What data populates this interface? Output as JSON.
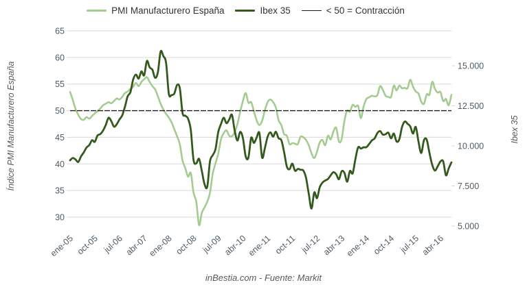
{
  "footer": "inBestia.com - Fuente: Markit",
  "colors": {
    "background": "#ffffff",
    "grid": "#d9d9d9",
    "tick_text": "#4e5b66",
    "axis_title_text": "#595959",
    "legend_text": "#333333"
  },
  "chart_data": {
    "type": "line",
    "title": "",
    "x_frequency": "monthly",
    "x_start": "ene-05",
    "x_end": "ago-16",
    "x_tick_labels": [
      "ene-05",
      "oct-05",
      "jul-06",
      "abr-07",
      "ene-08",
      "oct-08",
      "jul-09",
      "abr-10",
      "ene-11",
      "oct-11",
      "jul-12",
      "abr-13",
      "ene-14",
      "oct-14",
      "jul-15",
      "abr-16"
    ],
    "x_tick_month_indices": [
      0,
      9,
      18,
      27,
      36,
      45,
      54,
      63,
      72,
      81,
      90,
      99,
      108,
      117,
      126,
      135
    ],
    "grid": "horizontal",
    "legend_position": "top",
    "left_axis": {
      "title": "Índice PMI Manufacturero España",
      "ticks": [
        30,
        35,
        40,
        45,
        50,
        55,
        60,
        65
      ],
      "range": [
        30,
        65
      ]
    },
    "right_axis": {
      "title": "Ibex 35",
      "tick_labels": [
        "5.000",
        "7.500",
        "10.000",
        "12.500",
        "15.000"
      ],
      "tick_values": [
        5000,
        7500,
        10000,
        12500,
        15000
      ],
      "range": [
        5000,
        16000
      ]
    },
    "threshold": {
      "label": "< 50 = Contracción",
      "value": 50,
      "axis": "left",
      "color": "#1a1a1a"
    },
    "series": [
      {
        "name": "PMI Manufacturero España",
        "axis": "left",
        "color": "#a4cb90",
        "values": [
          53.5,
          52.0,
          50.3,
          49.2,
          48.4,
          48.3,
          48.8,
          48.5,
          49.0,
          49.5,
          49.9,
          50.4,
          51.0,
          51.3,
          51.6,
          51.4,
          51.8,
          52.3,
          52.1,
          52.6,
          53.3,
          53.6,
          54.1,
          54.5,
          55.2,
          54.6,
          55.4,
          55.9,
          56.3,
          55.4,
          54.6,
          54.0,
          52.7,
          51.3,
          50.2,
          49.4,
          48.7,
          47.8,
          46.5,
          45.2,
          43.7,
          40.6,
          39.2,
          37.6,
          38.3,
          34.6,
          32.9,
          28.5,
          30.8,
          31.8,
          32.9,
          34.6,
          38.2,
          40.1,
          41.9,
          44.6,
          45.8,
          46.3,
          45.3,
          45.2,
          46.0,
          47.5,
          49.8,
          51.8,
          53.3,
          51.5,
          51.6,
          49.9,
          48.2,
          47.3,
          48.1,
          50.1,
          51.6,
          52.1,
          51.6,
          50.6,
          48.2,
          47.3,
          45.6,
          45.3,
          43.7,
          43.9,
          43.8,
          43.7,
          45.1,
          45.0,
          44.5,
          43.5,
          42.0,
          41.1,
          42.3,
          44.0,
          44.5,
          43.5,
          45.3,
          44.6,
          46.1,
          46.8,
          44.2,
          44.7,
          48.1,
          50.0,
          49.8,
          51.1,
          50.7,
          50.9,
          48.6,
          50.8,
          52.2,
          52.5,
          52.8,
          52.7,
          52.9,
          54.6,
          53.9,
          52.8,
          52.6,
          52.6,
          54.7,
          53.8,
          54.7,
          54.2,
          54.3,
          54.2,
          55.8,
          54.5,
          53.6,
          53.2,
          51.7,
          51.3,
          53.1,
          53.0,
          55.4,
          54.1,
          53.4,
          53.5,
          51.8,
          52.2,
          51.0,
          53.0
        ]
      },
      {
        "name": "Ibex 35",
        "axis": "right",
        "color": "#33591d",
        "values": [
          9100,
          9250,
          9150,
          9000,
          9350,
          9600,
          9900,
          10050,
          10350,
          10250,
          10650,
          10735,
          10950,
          11300,
          11750,
          11550,
          11200,
          11350,
          11650,
          11900,
          12450,
          13100,
          13350,
          14145,
          14450,
          14200,
          14650,
          14400,
          15300,
          14900,
          14750,
          14250,
          14600,
          15890,
          15600,
          15180,
          13250,
          13170,
          13270,
          13800,
          13600,
          12050,
          11880,
          11700,
          10990,
          9120,
          8910,
          9195,
          8450,
          7620,
          7450,
          9040,
          9420,
          9790,
          10860,
          11365,
          11755,
          11415,
          11645,
          11940,
          10950,
          10335,
          10870,
          10490,
          9360,
          9265,
          10500,
          10190,
          10515,
          10810,
          9270,
          9860,
          10570,
          10850,
          10575,
          10880,
          10475,
          10360,
          9630,
          8720,
          8545,
          8895,
          8450,
          8565,
          8510,
          8465,
          8010,
          7010,
          6090,
          7100,
          6740,
          7420,
          7710,
          7840,
          7935,
          8165,
          8360,
          8230,
          7920,
          8420,
          8320,
          7765,
          8435,
          8290,
          9185,
          9910,
          9835,
          9915,
          9920,
          10115,
          10340,
          10460,
          10800,
          10925,
          10705,
          10730,
          10825,
          10475,
          10770,
          10280,
          10405,
          11180,
          11520,
          11385,
          11215,
          10770,
          11180,
          10260,
          9560,
          10360,
          10385,
          9545,
          8815,
          8460,
          8725,
          9025,
          9035,
          8165,
          8590,
          8970
        ]
      }
    ],
    "footer": "inBestia.com - Fuente: Markit"
  }
}
